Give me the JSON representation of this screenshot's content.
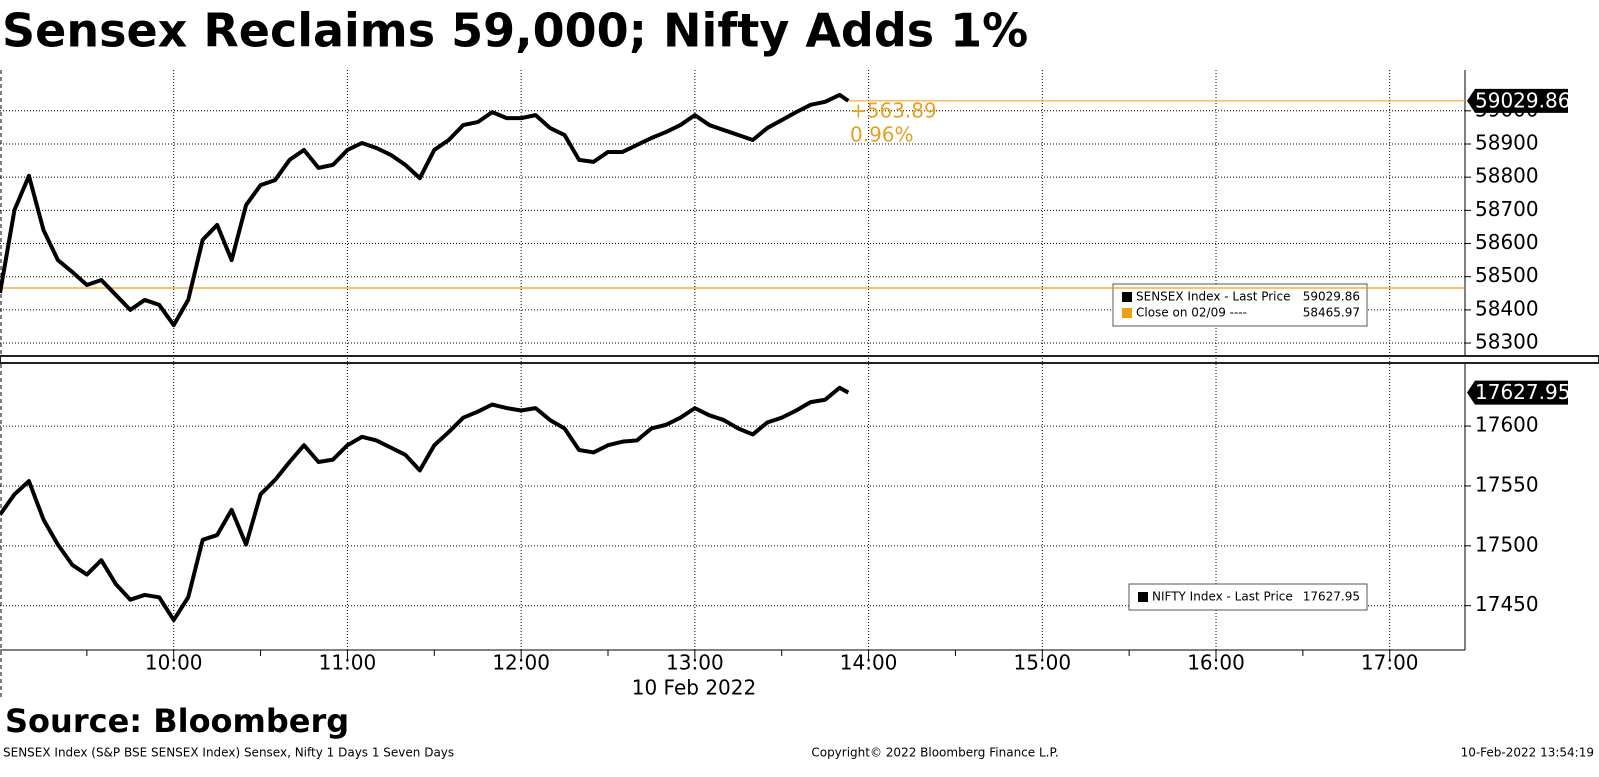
{
  "title": "Sensex Reclaims 59,000; Nifty Adds 1%",
  "source": "Source: Bloomberg",
  "footer": {
    "left": "SENSEX Index (S&P BSE SENSEX Index) Sensex, Nifty 1 Days 1 Seven Days",
    "center": "Copyright© 2022 Bloomberg Finance L.P.",
    "right": "10-Feb-2022 13:54:19"
  },
  "chart_data": [
    {
      "type": "line",
      "x": [
        "09:00",
        "09:05",
        "09:10",
        "09:15",
        "09:20",
        "09:25",
        "09:30",
        "09:35",
        "09:40",
        "09:45",
        "09:50",
        "09:55",
        "10:00",
        "10:05",
        "10:10",
        "10:15",
        "10:20",
        "10:25",
        "10:30",
        "10:35",
        "10:40",
        "10:45",
        "10:50",
        "10:55",
        "11:00",
        "11:05",
        "11:10",
        "11:15",
        "11:20",
        "11:25",
        "11:30",
        "11:35",
        "11:40",
        "11:45",
        "11:50",
        "11:55",
        "12:00",
        "12:05",
        "12:10",
        "12:15",
        "12:20",
        "12:25",
        "12:30",
        "12:35",
        "12:40",
        "12:45",
        "12:50",
        "12:55",
        "13:00",
        "13:05",
        "13:10",
        "13:15",
        "13:20",
        "13:25",
        "13:30",
        "13:35",
        "13:40",
        "13:45",
        "13:50",
        "13:53"
      ],
      "series": [
        {
          "name": "SENSEX Index - Last Price",
          "color": "#000000",
          "values": [
            58451,
            58701,
            58804,
            58641,
            58550,
            58514,
            58475,
            58490,
            58445,
            58400,
            58430,
            58415,
            58354,
            58430,
            58611,
            58656,
            58550,
            58716,
            58776,
            58791,
            58852,
            58882,
            58828,
            58837,
            58882,
            58903,
            58888,
            58867,
            58837,
            58797,
            58882,
            58912,
            58957,
            58966,
            58996,
            58978,
            58978,
            58987,
            58948,
            58927,
            58852,
            58846,
            58876,
            58876,
            58897,
            58918,
            58936,
            58957,
            58987,
            58957,
            58942,
            58927,
            58912,
            58948,
            58972,
            58996,
            59018,
            59027,
            59048,
            59029.86
          ]
        }
      ],
      "reference_line": {
        "name": "Close on 02/09 ----",
        "value": 58465.97,
        "color": "#f39c12"
      },
      "annotations": [
        "+563.89",
        "0.96%"
      ],
      "annotation_color": "#e8a020",
      "xlim": [
        "09:00",
        "17:26"
      ],
      "ylim": [
        58264,
        59123
      ],
      "yticks": [
        58300,
        58400,
        58500,
        58600,
        58700,
        58800,
        58900,
        59000
      ],
      "grid": true
    },
    {
      "type": "line",
      "x": [
        "09:00",
        "09:05",
        "09:10",
        "09:15",
        "09:20",
        "09:25",
        "09:30",
        "09:35",
        "09:40",
        "09:45",
        "09:50",
        "09:55",
        "10:00",
        "10:05",
        "10:10",
        "10:15",
        "10:20",
        "10:25",
        "10:30",
        "10:35",
        "10:40",
        "10:45",
        "10:50",
        "10:55",
        "11:00",
        "11:05",
        "11:10",
        "11:15",
        "11:20",
        "11:25",
        "11:30",
        "11:35",
        "11:40",
        "11:45",
        "11:50",
        "11:55",
        "12:00",
        "12:05",
        "12:10",
        "12:15",
        "12:20",
        "12:25",
        "12:30",
        "12:35",
        "12:40",
        "12:45",
        "12:50",
        "12:55",
        "13:00",
        "13:05",
        "13:10",
        "13:15",
        "13:20",
        "13:25",
        "13:30",
        "13:35",
        "13:40",
        "13:45",
        "13:50",
        "13:53"
      ],
      "series": [
        {
          "name": "NIFTY Index - Last Price",
          "color": "#000000",
          "values": [
            17526,
            17543,
            17554,
            17522,
            17501,
            17484,
            17476,
            17488,
            17468,
            17455,
            17459,
            17457,
            17438,
            17457,
            17505,
            17509,
            17530,
            17501,
            17543,
            17555,
            17570,
            17584,
            17570,
            17572,
            17584,
            17591,
            17588,
            17582,
            17576,
            17563,
            17584,
            17595,
            17607,
            17612,
            17618,
            17615,
            17613,
            17615,
            17605,
            17598,
            17580,
            17578,
            17584,
            17587,
            17588,
            17598,
            17601,
            17607,
            17615,
            17609,
            17605,
            17598,
            17593,
            17603,
            17607,
            17613,
            17620,
            17622,
            17632,
            17627.95
          ]
        }
      ],
      "xlim": [
        "09:00",
        "17:26"
      ],
      "ylim": [
        17413,
        17651
      ],
      "yticks": [
        17450,
        17500,
        17550,
        17600
      ],
      "xticks": [
        "10:00",
        "11:00",
        "12:00",
        "13:00",
        "14:00",
        "15:00",
        "16:00",
        "17:00"
      ],
      "xlabel": "10 Feb 2022",
      "grid": true
    }
  ]
}
